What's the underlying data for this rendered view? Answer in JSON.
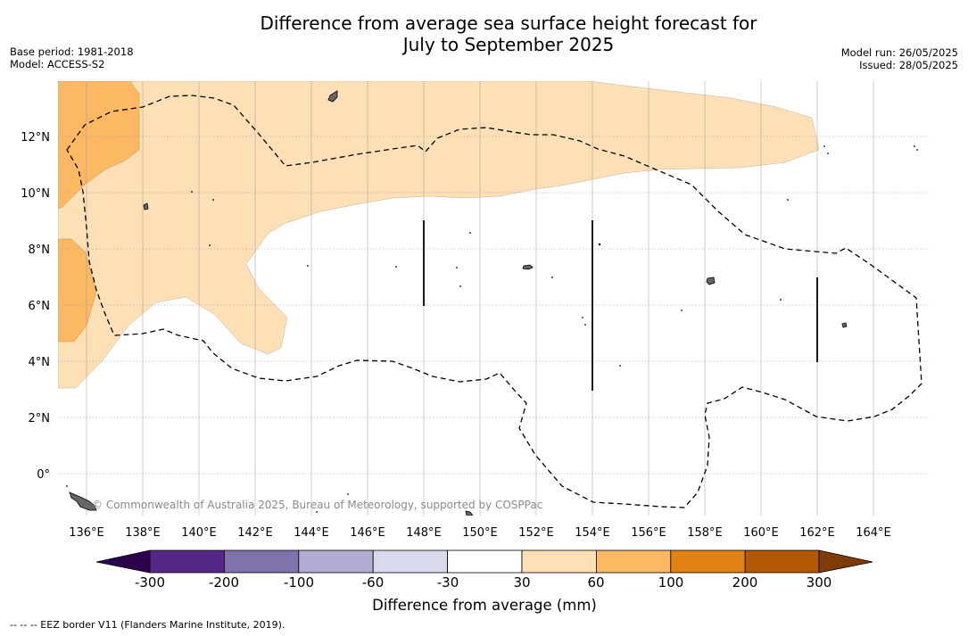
{
  "title": {
    "line1": "Difference from average sea surface height forecast for",
    "line2": "July to September 2025"
  },
  "meta_left": {
    "base_period": "Base period: 1981-2018",
    "model": "Model: ACCESS-S2"
  },
  "meta_right": {
    "model_run": "Model run: 26/05/2025",
    "issued": "Issued: 28/05/2025"
  },
  "map": {
    "longitude_labels": [
      "136°E",
      "138°E",
      "140°E",
      "142°E",
      "144°E",
      "146°E",
      "148°E",
      "150°E",
      "152°E",
      "154°E",
      "156°E",
      "158°E",
      "160°E",
      "162°E",
      "164°E"
    ],
    "latitude_labels": [
      "12°N",
      "10°N",
      "8°N",
      "6°N",
      "4°N",
      "2°N",
      "0°"
    ],
    "lon_range": [
      135,
      166
    ],
    "lat_range": [
      -1.5,
      14
    ],
    "credit": "© Commonwealth of Australia 2025, Bureau of Meteorology, supported by COSPPac",
    "eez_style": "dashed",
    "gridlines": true
  },
  "colorbar": {
    "title": "Difference from average (mm)",
    "ticks": [
      "-300",
      "-200",
      "-100",
      "-60",
      "-30",
      "30",
      "60",
      "100",
      "200",
      "300"
    ],
    "colors": [
      "#2d004b",
      "#542788",
      "#8073ac",
      "#b2abd2",
      "#d8daeb",
      "#ffffff",
      "#fee0b6",
      "#fdb863",
      "#e08214",
      "#b35806",
      "#7f3b08"
    ]
  },
  "footer": "-- -- -- EEZ border V11 (Flanders Marine Institute, 2019)."
}
